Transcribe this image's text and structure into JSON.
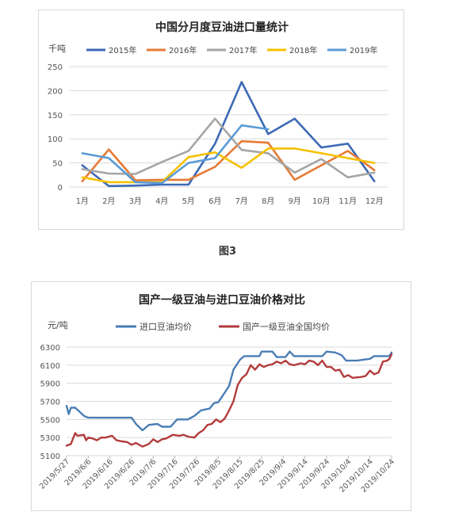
{
  "caption": "图3",
  "chart_data": [
    {
      "type": "line",
      "title": "中国分月度豆油进口量统计",
      "ylabel": "千吨",
      "xlabel": "",
      "categories": [
        "1月",
        "2月",
        "3月",
        "4月",
        "5月",
        "6月",
        "7月",
        "8月",
        "9月",
        "10月",
        "11月",
        "12月"
      ],
      "ylim": [
        0,
        250
      ],
      "yticks": [
        0,
        50,
        100,
        150,
        200,
        250
      ],
      "grid": true,
      "legend": "top",
      "series": [
        {
          "name": "2015年",
          "color": "#3d6ab5",
          "values": [
            45,
            2,
            3,
            5,
            5,
            90,
            218,
            110,
            142,
            82,
            90,
            12
          ]
        },
        {
          "name": "2016年",
          "color": "#e67a35",
          "values": [
            12,
            78,
            14,
            15,
            15,
            42,
            95,
            92,
            15,
            45,
            75,
            35
          ]
        },
        {
          "name": "2017年",
          "color": "#a5a5a5",
          "values": [
            37,
            28,
            27,
            52,
            75,
            142,
            77,
            70,
            30,
            58,
            20,
            30
          ]
        },
        {
          "name": "2018年",
          "color": "#f6c100",
          "values": [
            20,
            10,
            10,
            10,
            62,
            72,
            40,
            80,
            80,
            70,
            60,
            50
          ]
        },
        {
          "name": "2019年",
          "color": "#5b9bd5",
          "values": [
            70,
            60,
            10,
            8,
            50,
            60,
            128,
            120,
            null,
            null,
            null,
            null
          ]
        }
      ]
    },
    {
      "type": "line",
      "title": "国产一级豆油与进口豆油价格对比",
      "ylabel": "元/吨",
      "xlabel": "",
      "x_start": "2019/5/27",
      "x_end": "2019/10/24",
      "xticks": [
        "2019/5/27",
        "2019/6/6",
        "2019/6/16",
        "2019/6/26",
        "2019/7/6",
        "2019/7/16",
        "2019/7/26",
        "2019/8/5",
        "2019/8/15",
        "2019/8/25",
        "2019/9/4",
        "2019/9/14",
        "2019/9/24",
        "2019/10/4",
        "2019/10/14",
        "2019/10/24"
      ],
      "ylim": [
        5100,
        6300
      ],
      "yticks": [
        5100,
        5300,
        5500,
        5700,
        5900,
        6100,
        6300
      ],
      "grid": true,
      "legend": "top",
      "series": [
        {
          "name": "进口豆油均价",
          "color": "#4a7db5",
          "points": [
            [
              "2019/5/27",
              5650
            ],
            [
              "2019/5/28",
              5560
            ],
            [
              "2019/5/29",
              5630
            ],
            [
              "2019/5/31",
              5630
            ],
            [
              "2019/6/4",
              5540
            ],
            [
              "2019/6/6",
              5520
            ],
            [
              "2019/6/26",
              5520
            ],
            [
              "2019/6/28",
              5450
            ],
            [
              "2019/7/1",
              5380
            ],
            [
              "2019/7/4",
              5440
            ],
            [
              "2019/7/8",
              5450
            ],
            [
              "2019/7/10",
              5420
            ],
            [
              "2019/7/14",
              5420
            ],
            [
              "2019/7/17",
              5500
            ],
            [
              "2019/7/22",
              5500
            ],
            [
              "2019/7/25",
              5540
            ],
            [
              "2019/7/28",
              5600
            ],
            [
              "2019/8/1",
              5620
            ],
            [
              "2019/8/3",
              5680
            ],
            [
              "2019/8/5",
              5690
            ],
            [
              "2019/8/7",
              5760
            ],
            [
              "2019/8/10",
              5870
            ],
            [
              "2019/8/12",
              6050
            ],
            [
              "2019/8/15",
              6160
            ],
            [
              "2019/8/17",
              6200
            ],
            [
              "2019/8/24",
              6200
            ],
            [
              "2019/8/25",
              6250
            ],
            [
              "2019/8/30",
              6250
            ],
            [
              "2019/9/1",
              6190
            ],
            [
              "2019/9/5",
              6190
            ],
            [
              "2019/9/7",
              6250
            ],
            [
              "2019/9/9",
              6200
            ],
            [
              "2019/9/22",
              6200
            ],
            [
              "2019/9/24",
              6250
            ],
            [
              "2019/9/28",
              6240
            ],
            [
              "2019/10/1",
              6210
            ],
            [
              "2019/10/3",
              6150
            ],
            [
              "2019/10/8",
              6150
            ],
            [
              "2019/10/14",
              6170
            ],
            [
              "2019/10/16",
              6200
            ],
            [
              "2019/10/23",
              6200
            ],
            [
              "2019/10/24",
              6240
            ]
          ]
        },
        {
          "name": "国产一级豆油全国均价",
          "color": "#b33c3c",
          "points": [
            [
              "2019/5/27",
              5210
            ],
            [
              "2019/5/29",
              5230
            ],
            [
              "2019/5/31",
              5350
            ],
            [
              "2019/6/1",
              5320
            ],
            [
              "2019/6/4",
              5330
            ],
            [
              "2019/6/5",
              5270
            ],
            [
              "2019/6/6",
              5300
            ],
            [
              "2019/6/8",
              5290
            ],
            [
              "2019/6/10",
              5270
            ],
            [
              "2019/6/12",
              5300
            ],
            [
              "2019/6/14",
              5300
            ],
            [
              "2019/6/17",
              5320
            ],
            [
              "2019/6/19",
              5270
            ],
            [
              "2019/6/21",
              5260
            ],
            [
              "2019/6/24",
              5250
            ],
            [
              "2019/6/26",
              5220
            ],
            [
              "2019/6/28",
              5240
            ],
            [
              "2019/7/1",
              5200
            ],
            [
              "2019/7/4",
              5230
            ],
            [
              "2019/7/6",
              5280
            ],
            [
              "2019/7/8",
              5250
            ],
            [
              "2019/7/10",
              5280
            ],
            [
              "2019/7/12",
              5290
            ],
            [
              "2019/7/15",
              5330
            ],
            [
              "2019/7/18",
              5320
            ],
            [
              "2019/7/20",
              5330
            ],
            [
              "2019/7/22",
              5310
            ],
            [
              "2019/7/25",
              5300
            ],
            [
              "2019/7/27",
              5350
            ],
            [
              "2019/7/29",
              5380
            ],
            [
              "2019/7/31",
              5440
            ],
            [
              "2019/8/2",
              5450
            ],
            [
              "2019/8/4",
              5500
            ],
            [
              "2019/8/6",
              5470
            ],
            [
              "2019/8/8",
              5510
            ],
            [
              "2019/8/10",
              5600
            ],
            [
              "2019/8/12",
              5700
            ],
            [
              "2019/8/14",
              5880
            ],
            [
              "2019/8/16",
              5960
            ],
            [
              "2019/8/18",
              6000
            ],
            [
              "2019/8/20",
              6100
            ],
            [
              "2019/8/22",
              6050
            ],
            [
              "2019/8/24",
              6110
            ],
            [
              "2019/8/26",
              6080
            ],
            [
              "2019/8/28",
              6100
            ],
            [
              "2019/8/30",
              6110
            ],
            [
              "2019/9/1",
              6140
            ],
            [
              "2019/9/3",
              6120
            ],
            [
              "2019/9/5",
              6150
            ],
            [
              "2019/9/7",
              6110
            ],
            [
              "2019/9/9",
              6100
            ],
            [
              "2019/9/12",
              6120
            ],
            [
              "2019/9/14",
              6110
            ],
            [
              "2019/9/16",
              6150
            ],
            [
              "2019/9/18",
              6140
            ],
            [
              "2019/9/20",
              6100
            ],
            [
              "2019/9/22",
              6150
            ],
            [
              "2019/9/24",
              6080
            ],
            [
              "2019/9/26",
              6080
            ],
            [
              "2019/9/28",
              6040
            ],
            [
              "2019/9/30",
              6050
            ],
            [
              "2019/10/2",
              5970
            ],
            [
              "2019/10/4",
              5990
            ],
            [
              "2019/10/6",
              5960
            ],
            [
              "2019/10/10",
              5970
            ],
            [
              "2019/10/12",
              5980
            ],
            [
              "2019/10/14",
              6040
            ],
            [
              "2019/10/16",
              6000
            ],
            [
              "2019/10/18",
              6020
            ],
            [
              "2019/10/20",
              6140
            ],
            [
              "2019/10/22",
              6150
            ],
            [
              "2019/10/23",
              6170
            ],
            [
              "2019/10/24",
              6220
            ]
          ]
        }
      ]
    }
  ]
}
